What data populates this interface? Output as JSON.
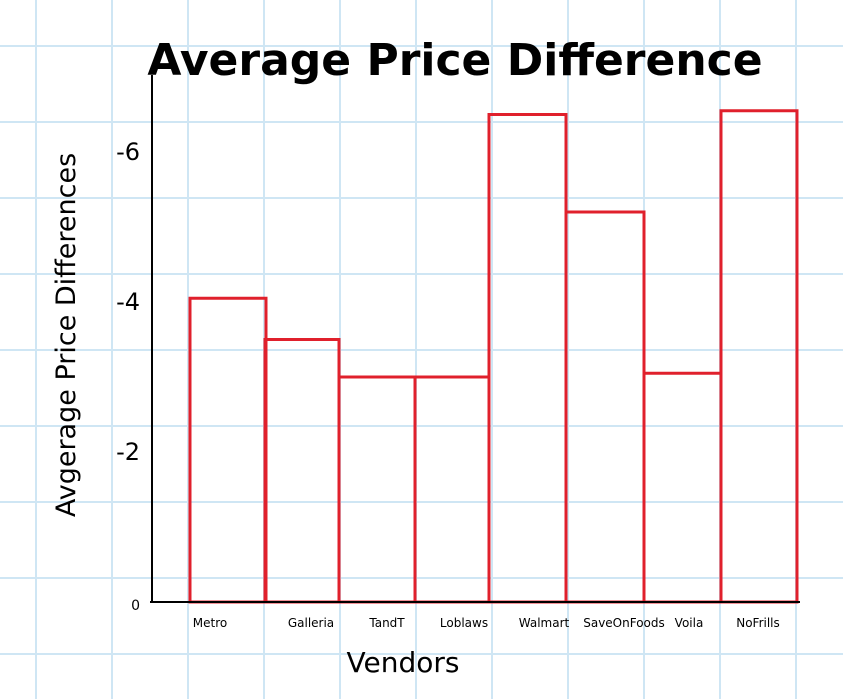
{
  "chart_data": {
    "type": "bar",
    "title": "Average Price Difference",
    "xlabel": "Vendors",
    "ylabel": "Avgerage Price Differences",
    "categories": [
      "Metro",
      "Galleria",
      "TandT",
      "Loblaws",
      "Walmart",
      "SaveOnFoods",
      "Voila",
      "NoFrills"
    ],
    "values": [
      -4.05,
      -3.5,
      -3.0,
      -3.0,
      -6.5,
      -5.2,
      -3.05,
      -6.55
    ],
    "yticks": [
      "0",
      "-2",
      "-4",
      "-6"
    ],
    "ylim": [
      0,
      -7
    ],
    "grid": true,
    "bar_color": "#e0202c",
    "grid_color": "#cfe6f4"
  }
}
